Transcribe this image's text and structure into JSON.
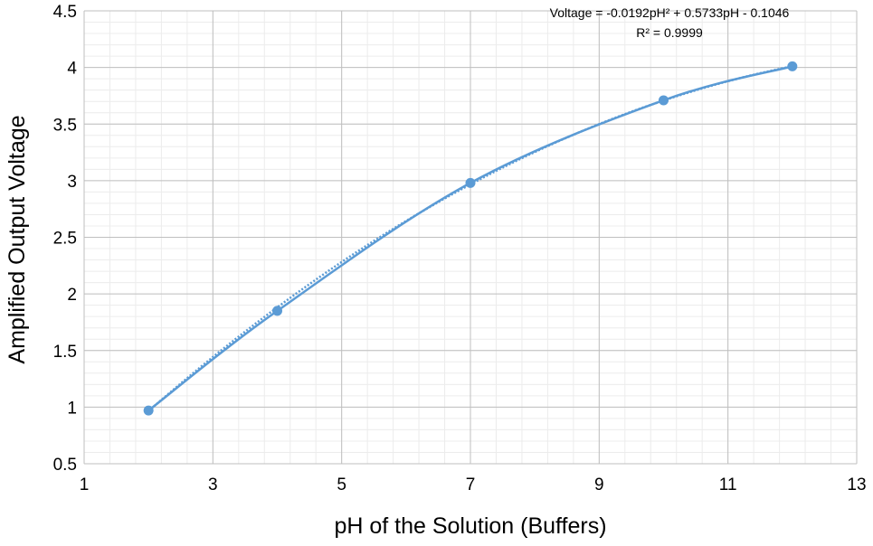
{
  "chart_data": {
    "type": "scatter",
    "title": "",
    "xlabel": "pH of the Solution (Buffers)",
    "ylabel": "Amplified Output Voltage",
    "xlim": [
      1,
      13
    ],
    "ylim": [
      0.5,
      4.5
    ],
    "x_ticks": [
      "1",
      "3",
      "5",
      "7",
      "9",
      "11",
      "13"
    ],
    "y_ticks": [
      "0.5",
      "1",
      "1.5",
      "2",
      "2.5",
      "3",
      "3.5",
      "4",
      "4.5"
    ],
    "grid": true,
    "minor_grid": true,
    "legend": "none",
    "series": [
      {
        "x": [
          2,
          4,
          7,
          10,
          12
        ],
        "y": [
          0.97,
          1.85,
          2.98,
          3.71,
          4.01
        ],
        "color": "#5b9bd5",
        "line": "smooth",
        "markers": true
      }
    ],
    "trendline": {
      "type": "polynomial",
      "coefficients": [
        -0.0192,
        0.5733,
        -0.1046
      ],
      "color": "#5b9bd5",
      "style": "dotted"
    },
    "annotations": {
      "equation": "Voltage = -0.0192pH² + 0.5733pH - 0.1046",
      "r_squared": "R² = 0.9999"
    }
  }
}
